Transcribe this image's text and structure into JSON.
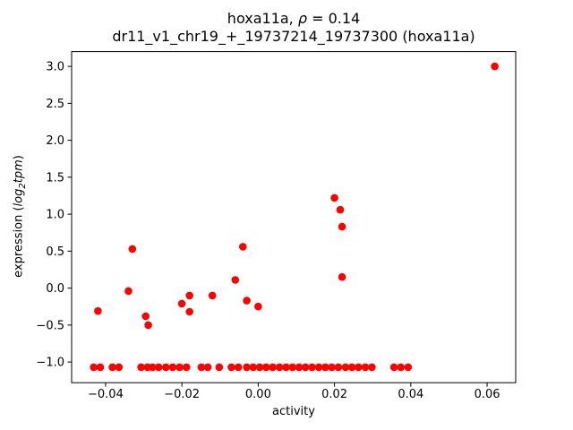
{
  "figure": {
    "title_line1": {
      "prefix": "hoxa11a, ",
      "rho": "ρ",
      "equals": " = 0.14"
    },
    "title_line2": "dr11_v1_chr19_+_19737214_19737300 (hoxa11a)",
    "ylabel_parts": {
      "prefix": "expression (",
      "log": "log",
      "sub": "2",
      "tpm": "tpm",
      "suffix": ")"
    },
    "background": "#ffffff"
  },
  "chart_data": {
    "type": "scatter",
    "title": "hoxa11a, ρ = 0.14",
    "subtitle": "dr11_v1_chr19_+_19737214_19737300 (hoxa11a)",
    "xlabel": "activity",
    "ylabel": "expression (log2tpm)",
    "xlim": [
      -0.0489,
      0.0675
    ],
    "ylim": [
      -1.28,
      3.2
    ],
    "grid": false,
    "legend": "none",
    "marker_color": "#ff0000",
    "axis_color": "#000000",
    "xticks": [
      -0.04,
      -0.02,
      0.0,
      0.02,
      0.04,
      0.06
    ],
    "xtick_labels": [
      "−0.04",
      "−0.02",
      "0.00",
      "0.02",
      "0.04",
      "0.06"
    ],
    "yticks": [
      3.0,
      2.5,
      2.0,
      1.5,
      1.0,
      0.5,
      0.0,
      -0.5,
      -1.0
    ],
    "ytick_labels": [
      "3.0",
      "2.5",
      "2.0",
      "1.5",
      "1.0",
      "0.5",
      "0.0",
      "−0.5",
      "−1.0"
    ],
    "points": [
      [
        -0.042,
        -0.31
      ],
      [
        -0.034,
        -0.04
      ],
      [
        -0.033,
        0.53
      ],
      [
        -0.0295,
        -0.38
      ],
      [
        -0.0288,
        -0.5
      ],
      [
        -0.02,
        -0.21
      ],
      [
        -0.018,
        -0.1
      ],
      [
        -0.018,
        -0.32
      ],
      [
        -0.012,
        -0.1
      ],
      [
        -0.006,
        0.11
      ],
      [
        -0.004,
        0.56
      ],
      [
        -0.003,
        -0.17
      ],
      [
        0.0,
        -0.25
      ],
      [
        0.02,
        1.22
      ],
      [
        0.0215,
        1.06
      ],
      [
        0.022,
        0.83
      ],
      [
        0.022,
        0.15
      ],
      [
        0.062,
        3.0
      ],
      [
        -0.0431,
        -1.07
      ],
      [
        -0.0414,
        -1.07
      ],
      [
        -0.0382,
        -1.07
      ],
      [
        -0.0365,
        -1.07
      ],
      [
        -0.0307,
        -1.07
      ],
      [
        -0.029,
        -1.07
      ],
      [
        -0.0277,
        -1.07
      ],
      [
        -0.0261,
        -1.07
      ],
      [
        -0.0242,
        -1.07
      ],
      [
        -0.0224,
        -1.07
      ],
      [
        -0.0206,
        -1.07
      ],
      [
        -0.0188,
        -1.07
      ],
      [
        -0.0149,
        -1.07
      ],
      [
        -0.0132,
        -1.07
      ],
      [
        -0.0102,
        -1.07
      ],
      [
        -0.007,
        -1.07
      ],
      [
        -0.0052,
        -1.07
      ],
      [
        -0.003,
        -1.07
      ],
      [
        -0.0013,
        -1.07
      ],
      [
        0.0004,
        -1.07
      ],
      [
        0.0021,
        -1.07
      ],
      [
        0.0038,
        -1.07
      ],
      [
        0.0056,
        -1.07
      ],
      [
        0.0073,
        -1.07
      ],
      [
        0.009,
        -1.07
      ],
      [
        0.0107,
        -1.07
      ],
      [
        0.0124,
        -1.07
      ],
      [
        0.0141,
        -1.07
      ],
      [
        0.0159,
        -1.07
      ],
      [
        0.0176,
        -1.07
      ],
      [
        0.0193,
        -1.07
      ],
      [
        0.021,
        -1.07
      ],
      [
        0.0229,
        -1.07
      ],
      [
        0.0246,
        -1.07
      ],
      [
        0.0263,
        -1.07
      ],
      [
        0.0281,
        -1.07
      ],
      [
        0.0298,
        -1.07
      ],
      [
        0.0356,
        -1.07
      ],
      [
        0.0374,
        -1.07
      ],
      [
        0.0393,
        -1.07
      ]
    ]
  }
}
